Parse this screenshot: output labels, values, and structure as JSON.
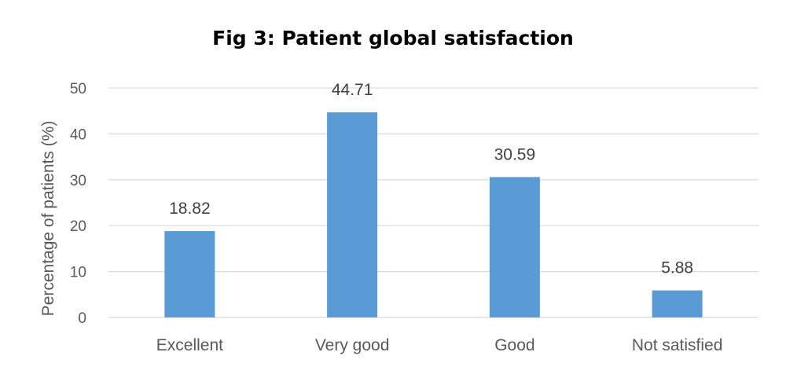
{
  "chart_data": {
    "type": "bar",
    "title": "Fig 3: Patient global satisfaction",
    "xlabel": "",
    "ylabel": "Percentage of patients (%)",
    "categories": [
      "Excellent",
      "Very good",
      "Good",
      "Not satisfied"
    ],
    "values": [
      18.82,
      44.71,
      30.59,
      5.88
    ],
    "value_labels": [
      "18.82",
      "44.71",
      "30.59",
      "5.88"
    ],
    "ylim": [
      0,
      50
    ],
    "yticks": [
      0,
      10,
      20,
      30,
      40,
      50
    ],
    "grid": true,
    "legend": "none",
    "bar_color": "#5b9bd5"
  }
}
